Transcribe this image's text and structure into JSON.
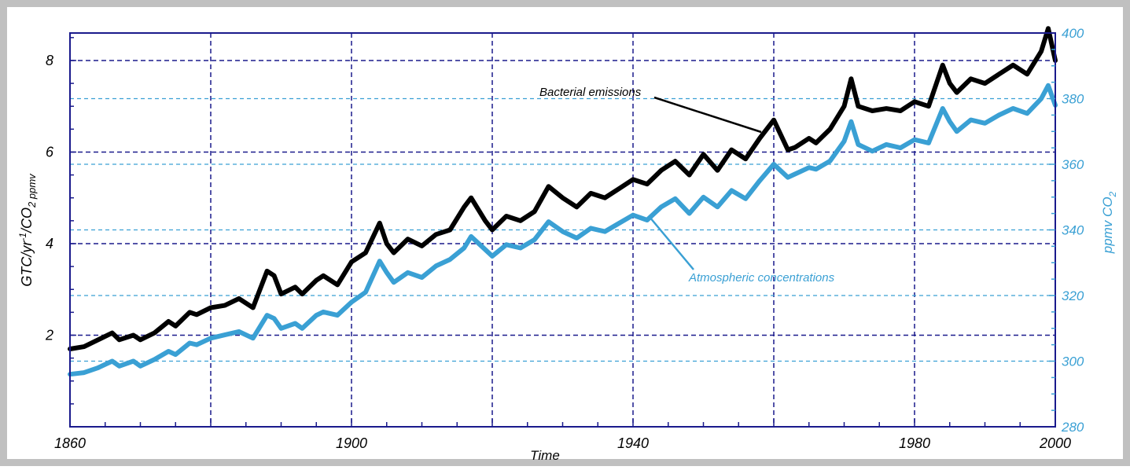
{
  "chart_data": {
    "type": "line",
    "title": "",
    "xlabel": "Time",
    "ylabel_left": "GTC/yr",
    "ylabel_left_sup": "-1",
    "ylabel_left_mid": "/CO",
    "ylabel_left_sub": "2 ppmv",
    "ylabel_right": "ppmv CO",
    "ylabel_right_sub": "2",
    "xlim": [
      1860,
      2000
    ],
    "ylim_left": [
      0,
      8.6
    ],
    "ylim_right": [
      280,
      400
    ],
    "x_ticks": [
      "1860",
      "1900",
      "1940",
      "1980",
      "2000"
    ],
    "y_ticks_left": [
      "2",
      "4",
      "6",
      "8"
    ],
    "y_ticks_right": [
      "280",
      "300",
      "320",
      "340",
      "360",
      "380",
      "400"
    ],
    "grid": true,
    "colors": {
      "frame": "#1a1a8c",
      "grid_major": "#1a1a8c",
      "grid_right": "#3aa0d4",
      "emissions": "#000000",
      "concentrations": "#3aa0d4",
      "right_axis": "#3aa0d4",
      "border": "#c0c0c0"
    },
    "annotations": [
      {
        "text": "Bacterial emissions",
        "series": "emissions"
      },
      {
        "text": "Atmospheric concentrations",
        "series": "concentrations"
      }
    ],
    "series": [
      {
        "name": "Bacterial emissions",
        "axis": "left",
        "x": [
          1860,
          1862,
          1864,
          1866,
          1867,
          1869,
          1870,
          1872,
          1874,
          1875,
          1877,
          1878,
          1880,
          1882,
          1884,
          1886,
          1888,
          1889,
          1890,
          1892,
          1893,
          1895,
          1896,
          1898,
          1900,
          1902,
          1904,
          1905,
          1906,
          1908,
          1910,
          1912,
          1914,
          1916,
          1917,
          1919,
          1920,
          1922,
          1924,
          1926,
          1928,
          1930,
          1932,
          1934,
          1936,
          1938,
          1940,
          1942,
          1944,
          1946,
          1948,
          1950,
          1952,
          1954,
          1956,
          1958,
          1960,
          1962,
          1963,
          1965,
          1966,
          1968,
          1970,
          1971,
          1972,
          1974,
          1976,
          1978,
          1980,
          1982,
          1984,
          1985,
          1986,
          1988,
          1990,
          1992,
          1994,
          1996,
          1998,
          1999,
          2000
        ],
        "values": [
          1.7,
          1.75,
          1.9,
          2.05,
          1.9,
          2.0,
          1.9,
          2.05,
          2.3,
          2.2,
          2.5,
          2.45,
          2.6,
          2.65,
          2.8,
          2.6,
          3.4,
          3.3,
          2.9,
          3.05,
          2.9,
          3.2,
          3.3,
          3.1,
          3.6,
          3.8,
          4.45,
          4.0,
          3.8,
          4.1,
          3.95,
          4.2,
          4.3,
          4.8,
          5.0,
          4.5,
          4.3,
          4.6,
          4.5,
          4.7,
          5.25,
          5.0,
          4.8,
          5.1,
          5.0,
          5.2,
          5.4,
          5.3,
          5.6,
          5.8,
          5.5,
          5.95,
          5.6,
          6.05,
          5.85,
          6.3,
          6.7,
          6.05,
          6.1,
          6.3,
          6.2,
          6.5,
          7.0,
          7.6,
          7.0,
          6.9,
          6.95,
          6.9,
          7.1,
          7.0,
          7.9,
          7.5,
          7.3,
          7.6,
          7.5,
          7.7,
          7.9,
          7.7,
          8.2,
          8.7,
          8.0
        ]
      },
      {
        "name": "Atmospheric concentrations",
        "axis": "right",
        "x": [
          1860,
          1862,
          1864,
          1866,
          1867,
          1869,
          1870,
          1872,
          1874,
          1875,
          1877,
          1878,
          1880,
          1882,
          1884,
          1886,
          1888,
          1889,
          1890,
          1892,
          1893,
          1895,
          1896,
          1898,
          1900,
          1902,
          1904,
          1905,
          1906,
          1908,
          1910,
          1912,
          1914,
          1916,
          1917,
          1919,
          1920,
          1922,
          1924,
          1926,
          1928,
          1930,
          1932,
          1934,
          1936,
          1938,
          1940,
          1942,
          1944,
          1946,
          1948,
          1950,
          1952,
          1954,
          1956,
          1958,
          1960,
          1962,
          1963,
          1965,
          1966,
          1968,
          1970,
          1971,
          1972,
          1974,
          1976,
          1978,
          1980,
          1982,
          1984,
          1985,
          1986,
          1988,
          1990,
          1992,
          1994,
          1996,
          1998,
          1999,
          2000
        ],
        "values": [
          296,
          296.5,
          298,
          300,
          298.5,
          300,
          298.5,
          300.5,
          303,
          302,
          305.5,
          305,
          307,
          308,
          309,
          307,
          314,
          313,
          310,
          311.5,
          310,
          314,
          315,
          314,
          318,
          321,
          330.5,
          327,
          324,
          327,
          325.5,
          329,
          331,
          334.5,
          338,
          334,
          332,
          335.5,
          334.5,
          337,
          342.5,
          339.5,
          337.5,
          340.5,
          339.5,
          342,
          344.5,
          343,
          347,
          349.5,
          345,
          350,
          347,
          352,
          349.5,
          355,
          360,
          356,
          357,
          359,
          358.5,
          361,
          367,
          373,
          366,
          364,
          366,
          365,
          367.5,
          366.5,
          377,
          373,
          370,
          373.5,
          372.5,
          375,
          377,
          375.5,
          380,
          384,
          378
        ]
      }
    ]
  }
}
